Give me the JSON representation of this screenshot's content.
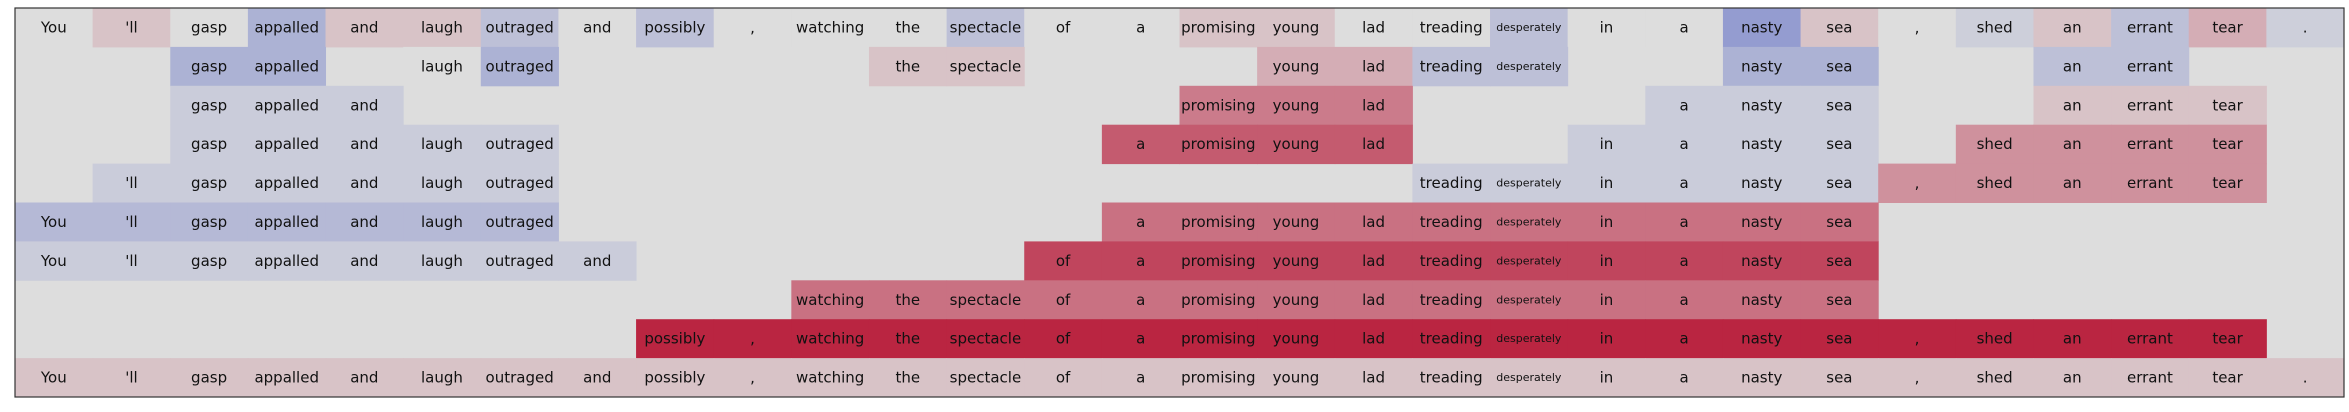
{
  "chart_data": {
    "type": "heatmap",
    "tokens": [
      "You",
      "'ll",
      "gasp",
      "appalled",
      "and",
      "laugh",
      "outraged",
      "and",
      "possibly",
      ",",
      "watching",
      "the",
      "spectacle",
      "of",
      "a",
      "promising",
      "young",
      "lad",
      "treading",
      "desperately",
      "in",
      "a",
      "nasty",
      "sea",
      ",",
      "shed",
      "an",
      "errant",
      "tear",
      "."
    ],
    "color_scale": {
      "negative": "#3b4cc0",
      "neutral": "#dddddd",
      "positive": "#b40426",
      "range": [
        -1,
        1
      ]
    },
    "rows": [
      {
        "values": [
          0,
          0.12,
          0,
          -0.3,
          0.12,
          0.12,
          -0.2,
          0,
          -0.2,
          0,
          0,
          0,
          -0.2,
          0,
          0,
          0.12,
          0.12,
          0,
          0,
          -0.2,
          0,
          0,
          -0.45,
          0.12,
          0,
          -0.1,
          0.12,
          -0.2,
          0.22,
          -0.1
        ]
      },
      {
        "values": [
          null,
          null,
          -0.3,
          -0.3,
          null,
          0,
          -0.3,
          null,
          null,
          null,
          null,
          0.12,
          0.12,
          null,
          null,
          null,
          0.22,
          0.22,
          -0.2,
          -0.2,
          null,
          null,
          -0.3,
          -0.3,
          null,
          null,
          -0.2,
          -0.2,
          null,
          null
        ]
      },
      {
        "values": [
          null,
          null,
          -0.12,
          -0.12,
          -0.12,
          null,
          null,
          null,
          null,
          null,
          null,
          null,
          null,
          null,
          null,
          0.45,
          0.45,
          0.45,
          null,
          null,
          null,
          -0.12,
          -0.12,
          -0.12,
          null,
          null,
          0.12,
          0.12,
          0.12,
          null
        ]
      },
      {
        "values": [
          null,
          null,
          -0.12,
          -0.12,
          -0.12,
          -0.12,
          -0.12,
          null,
          null,
          null,
          null,
          null,
          null,
          null,
          0.6,
          0.6,
          0.6,
          0.6,
          null,
          null,
          -0.12,
          -0.12,
          -0.12,
          -0.12,
          null,
          0.35,
          0.35,
          0.35,
          0.35,
          null
        ]
      },
      {
        "values": [
          null,
          -0.12,
          -0.12,
          -0.12,
          -0.12,
          -0.12,
          -0.12,
          null,
          null,
          null,
          null,
          null,
          null,
          null,
          null,
          null,
          null,
          null,
          -0.12,
          -0.12,
          -0.12,
          -0.12,
          -0.12,
          -0.12,
          0.35,
          0.35,
          0.35,
          0.35,
          0.35,
          null
        ]
      },
      {
        "values": [
          -0.25,
          -0.25,
          -0.25,
          -0.25,
          -0.25,
          -0.25,
          -0.25,
          null,
          null,
          null,
          null,
          null,
          null,
          null,
          0.5,
          0.5,
          0.5,
          0.5,
          0.5,
          0.5,
          0.5,
          0.5,
          0.5,
          0.5,
          null,
          null,
          null,
          null,
          null,
          null
        ]
      },
      {
        "values": [
          -0.12,
          -0.12,
          -0.12,
          -0.12,
          -0.12,
          -0.12,
          -0.12,
          -0.12,
          null,
          null,
          null,
          null,
          null,
          0.7,
          0.7,
          0.7,
          0.7,
          0.7,
          0.7,
          0.7,
          0.7,
          0.7,
          0.7,
          0.7,
          null,
          null,
          null,
          null,
          null,
          null
        ]
      },
      {
        "values": [
          null,
          null,
          null,
          null,
          null,
          null,
          null,
          null,
          null,
          null,
          0.5,
          0.5,
          0.5,
          0.5,
          0.5,
          0.5,
          0.5,
          0.5,
          0.5,
          0.5,
          0.5,
          0.5,
          0.5,
          0.5,
          null,
          null,
          null,
          null,
          null,
          null
        ]
      },
      {
        "values": [
          null,
          null,
          null,
          null,
          null,
          null,
          null,
          null,
          0.85,
          0.85,
          0.85,
          0.85,
          0.85,
          0.85,
          0.85,
          0.85,
          0.85,
          0.85,
          0.85,
          0.85,
          0.85,
          0.85,
          0.85,
          0.85,
          0.85,
          0.85,
          0.85,
          0.85,
          0.85,
          null
        ]
      },
      {
        "values": [
          0.12,
          0.12,
          0.12,
          0.12,
          0.12,
          0.12,
          0.12,
          0.12,
          0.12,
          0.12,
          0.12,
          0.12,
          0.12,
          0.12,
          0.12,
          0.12,
          0.12,
          0.12,
          0.12,
          0.12,
          0.12,
          0.12,
          0.12,
          0.12,
          0.12,
          0.12,
          0.12,
          0.12,
          0.12,
          0.12
        ]
      }
    ],
    "small_text_tokens": [
      "desperately"
    ],
    "grid": false,
    "legend": false
  }
}
